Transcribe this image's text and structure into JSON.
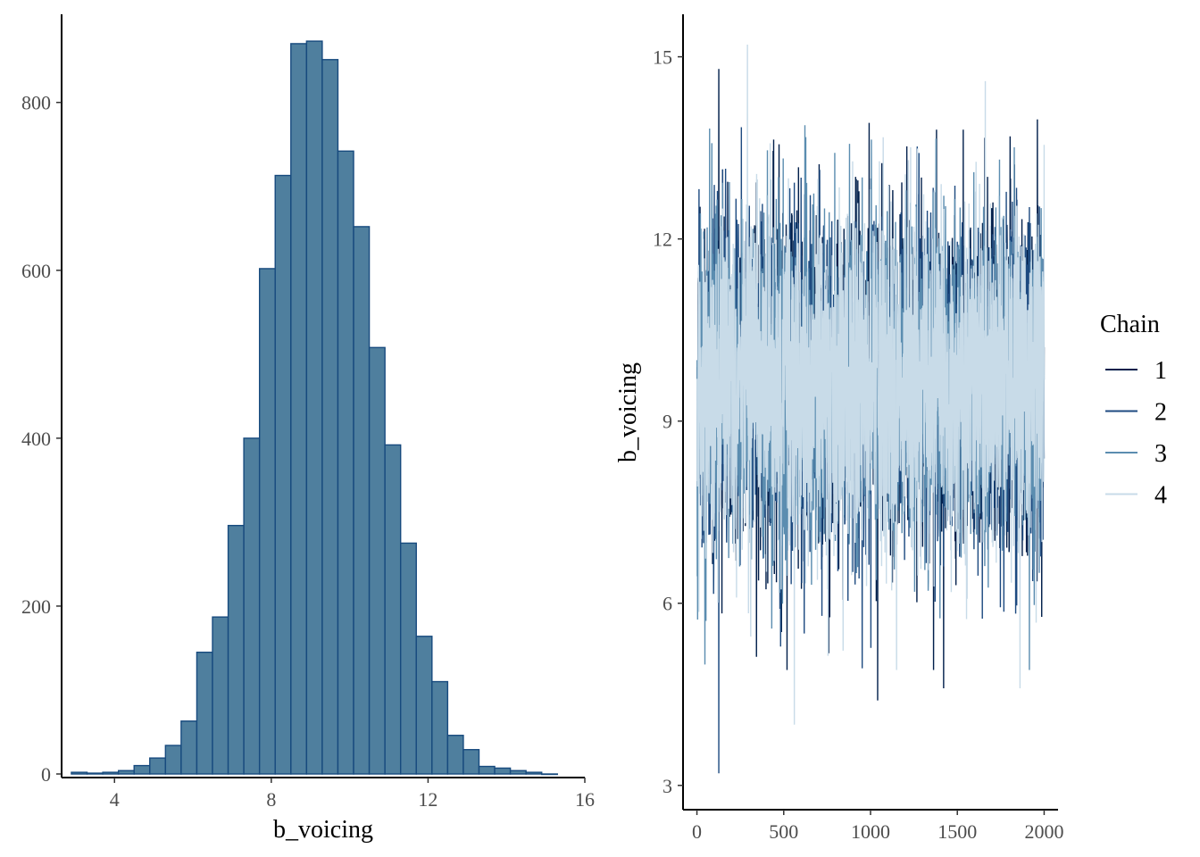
{
  "chart_data": [
    {
      "type": "bar",
      "subtype": "histogram",
      "xlabel": "b_voicing",
      "ylabel": "",
      "xlim": [
        2.65,
        16
      ],
      "ylim": [
        0,
        905
      ],
      "xticks": [
        4,
        8,
        12,
        16
      ],
      "yticks": [
        0,
        200,
        400,
        600,
        800
      ],
      "bin_width": 0.4,
      "bin_start": 2.9,
      "bin_centers": [
        3.1,
        3.5,
        3.9,
        4.3,
        4.7,
        5.1,
        5.5,
        5.9,
        6.3,
        6.7,
        7.1,
        7.5,
        7.9,
        8.3,
        8.7,
        9.1,
        9.5,
        9.9,
        10.3,
        10.7,
        11.1,
        11.5,
        11.9,
        12.3,
        12.7,
        13.1,
        13.5,
        13.9,
        14.3,
        14.7,
        15.1
      ],
      "values": [
        2,
        1,
        2,
        4,
        10,
        19,
        34,
        63,
        145,
        187,
        296,
        400,
        602,
        713,
        870,
        873,
        851,
        742,
        652,
        508,
        392,
        275,
        164,
        110,
        46,
        29,
        9,
        7,
        4,
        2,
        0
      ],
      "fill_color": "#4f7f9e",
      "edge_color": "#174a7e"
    },
    {
      "type": "line",
      "subtype": "trace",
      "xlabel": "",
      "ylabel": "b_voicing",
      "xlim": [
        -80,
        2080
      ],
      "ylim": [
        2.6,
        15.7
      ],
      "xticks": [
        0,
        500,
        1000,
        1500,
        2000
      ],
      "yticks": [
        3,
        6,
        9,
        12,
        15
      ],
      "n_iterations": 2000,
      "center": 9.65,
      "spread_sd": 1.35,
      "notable_points": [
        {
          "chain": "2",
          "x": 125,
          "y": 3.2
        },
        {
          "chain": "1",
          "x": 125,
          "y": 14.8
        },
        {
          "chain": "4",
          "x": 290,
          "y": 15.2
        },
        {
          "chain": "4",
          "x": 560,
          "y": 4.0
        },
        {
          "chain": "1",
          "x": 1040,
          "y": 4.4
        },
        {
          "chain": "1",
          "x": 1420,
          "y": 4.6
        },
        {
          "chain": "4",
          "x": 1660,
          "y": 14.6
        },
        {
          "chain": "4",
          "x": 1860,
          "y": 4.6
        }
      ],
      "series": [
        {
          "name": "1",
          "color": "#011f4b"
        },
        {
          "name": "2",
          "color": "#1d4a80"
        },
        {
          "name": "3",
          "color": "#5b8db0"
        },
        {
          "name": "4",
          "color": "#c8dbe8"
        }
      ],
      "legend": {
        "title": "Chain",
        "placement": "right"
      },
      "grid": false
    }
  ]
}
